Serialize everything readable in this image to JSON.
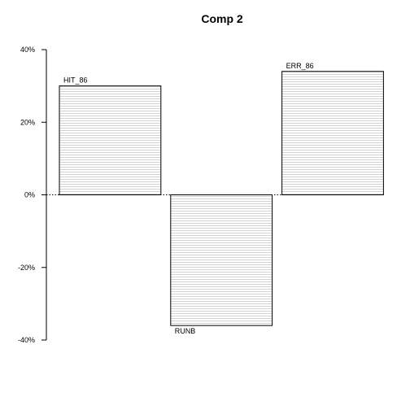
{
  "chart_data": {
    "type": "bar",
    "title": "Comp 2",
    "xlabel": "",
    "ylabel": "",
    "categories": [
      "HIT_86",
      "RUNB",
      "ERR_86"
    ],
    "values": [
      30,
      -36,
      34
    ],
    "ylim": [
      -40,
      40
    ],
    "yticks": [
      40,
      20,
      0,
      -20,
      -40
    ],
    "ytick_labels": [
      "40%",
      "20%",
      "0%",
      "-20%",
      "-40%"
    ],
    "bar_fill": "#ffffff",
    "bar_stroke": "#000000",
    "hatch_color": "#c8c8c8",
    "zero_line_style": "dotted",
    "grid": false,
    "legend": "none"
  }
}
